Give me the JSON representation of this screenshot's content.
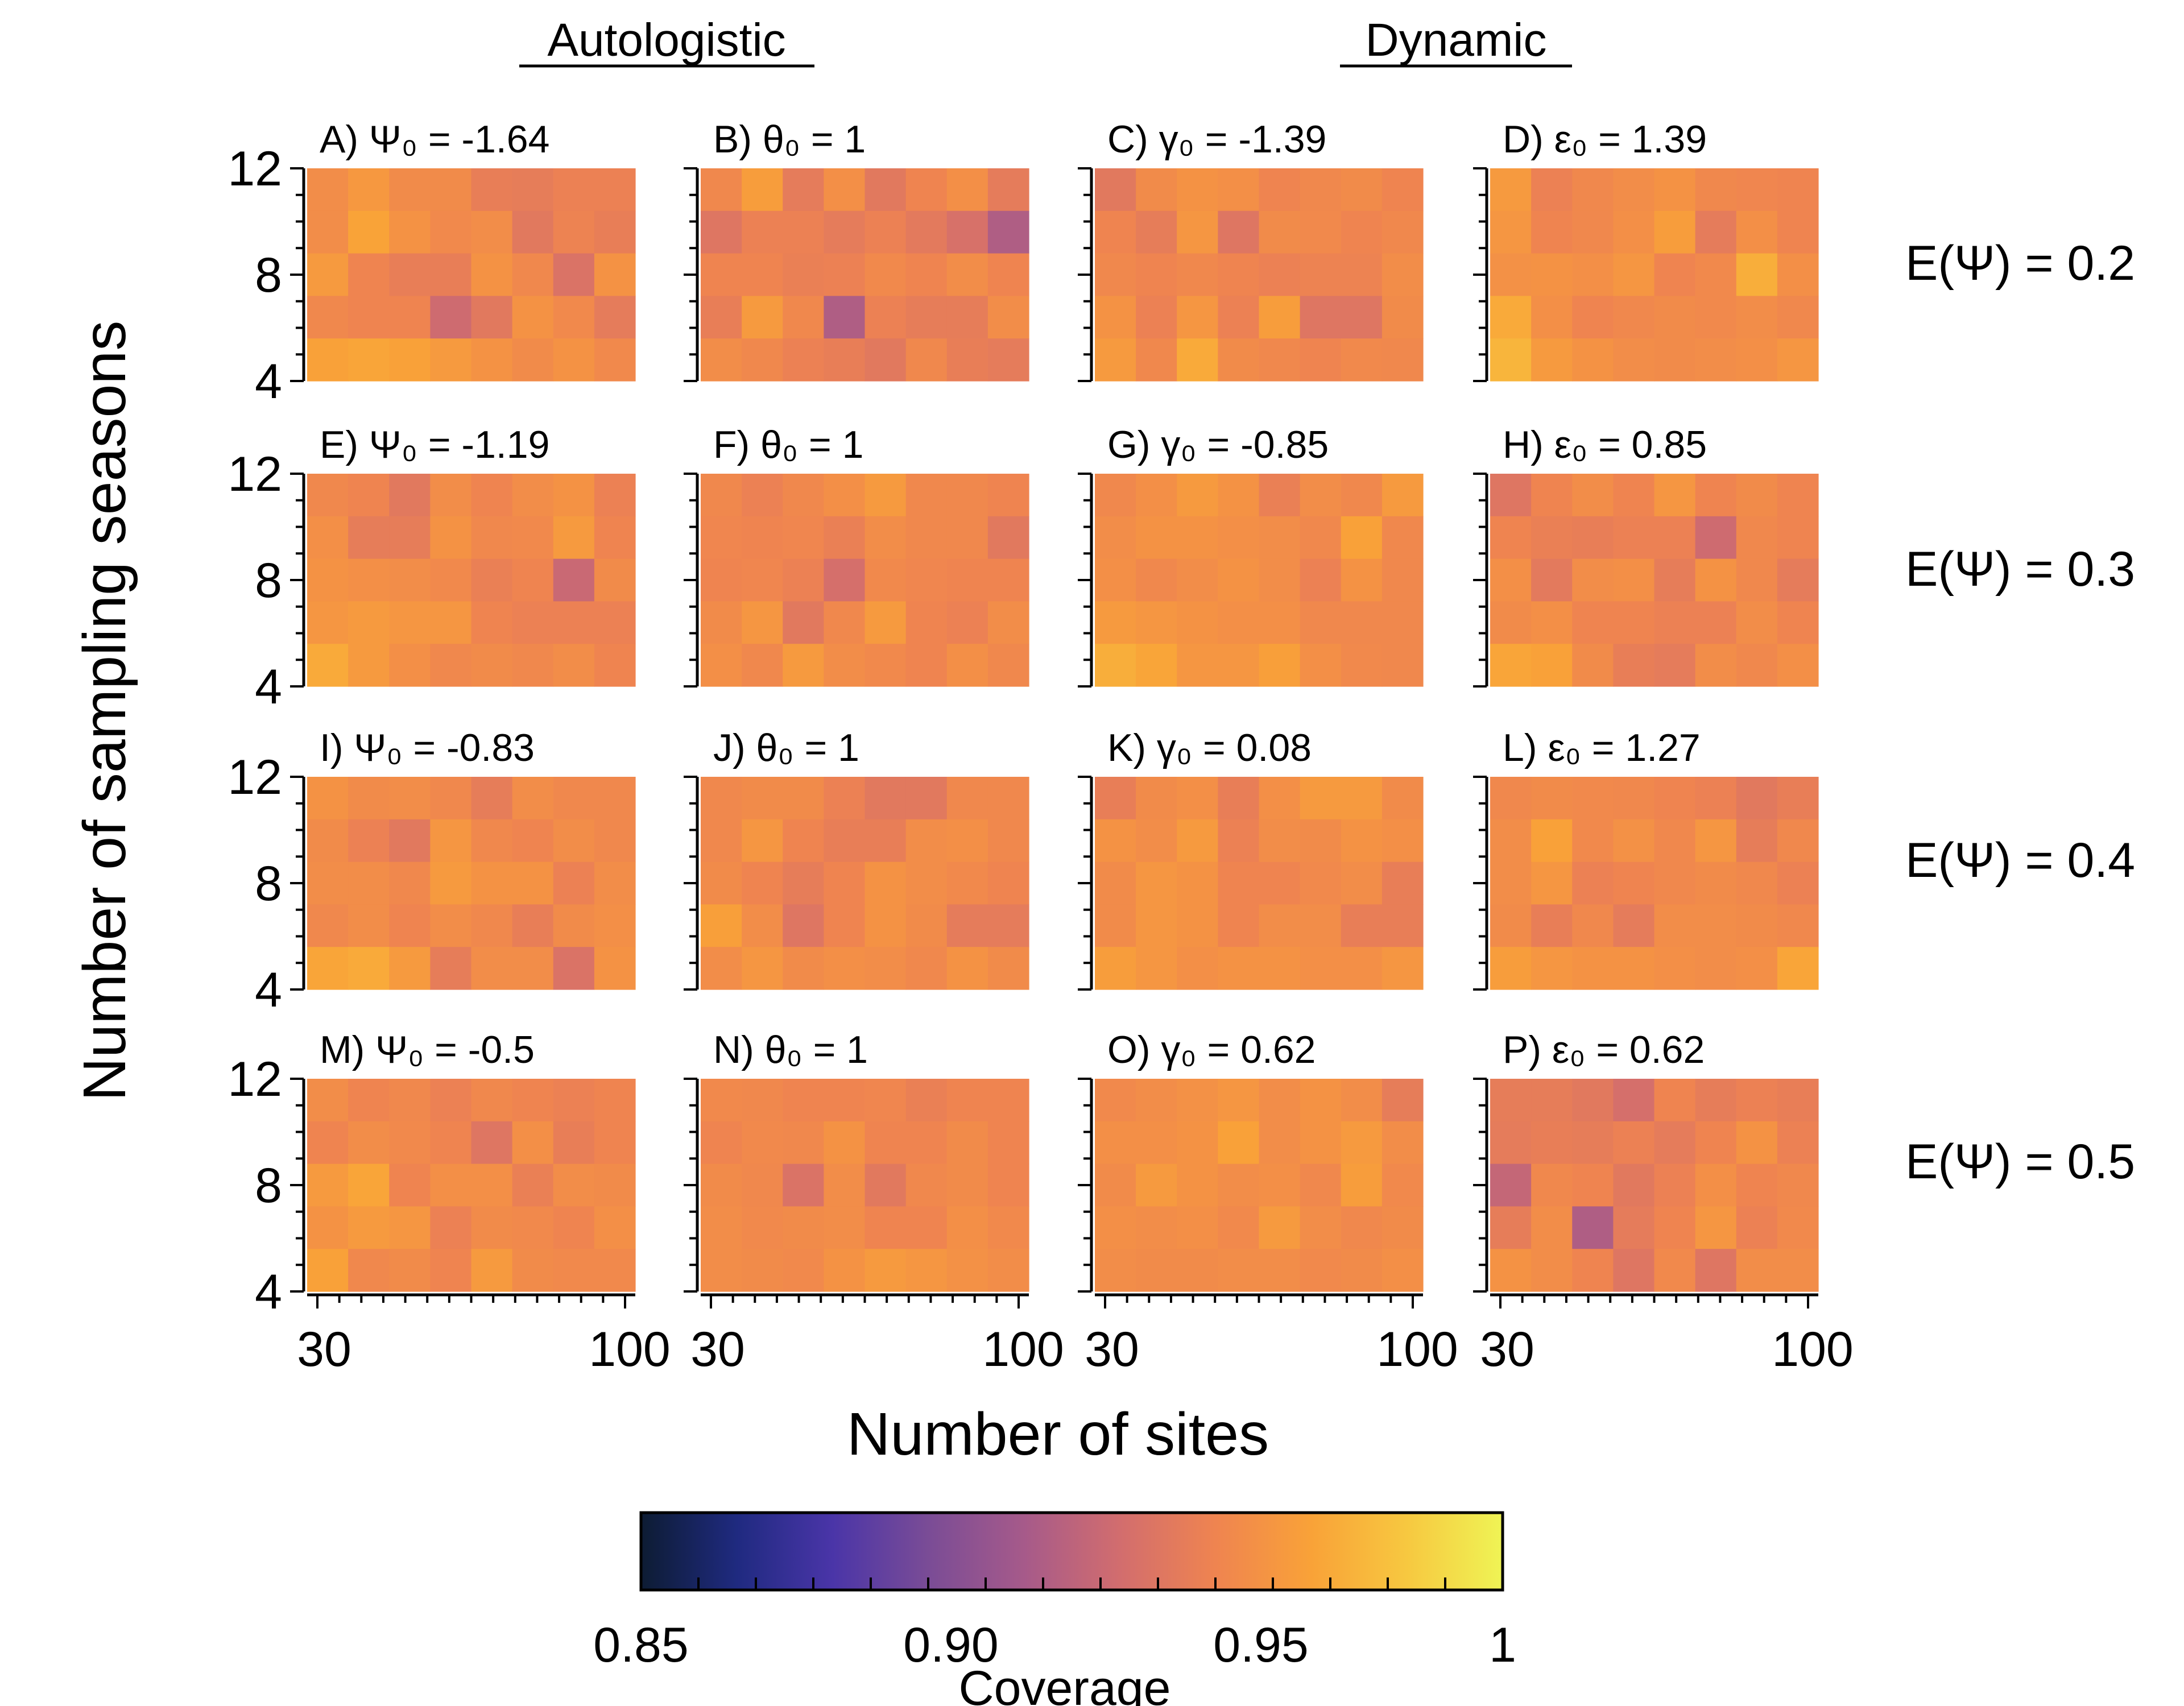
{
  "chart_data": {
    "type": "heatmap",
    "group_titles": [
      "Autologistic",
      "Dynamic"
    ],
    "xlabel": "Number of sites",
    "ylabel": "Number of sampling seasons",
    "x_ticks": [
      "30",
      "100"
    ],
    "y_ticks": [
      "4",
      "8",
      "12"
    ],
    "x_range": [
      30,
      100
    ],
    "y_range": [
      4,
      12
    ],
    "row_labels": [
      "E(Ψ) = 0.2",
      "E(Ψ) = 0.3",
      "E(Ψ) = 0.4",
      "E(Ψ) = 0.5"
    ],
    "colorbar": {
      "title": "Coverage",
      "min": 0.85,
      "max": 1,
      "tick_labels": [
        "0.85",
        "0.90",
        "0.95",
        "1"
      ],
      "colors": [
        "#0d1c33",
        "#1f2a80",
        "#4a35a8",
        "#7a4c96",
        "#a65a8a",
        "#d26d6e",
        "#ef8450",
        "#f9a238",
        "#f7c840",
        "#eff455"
      ]
    },
    "panels": [
      {
        "title": "A) Ψ₀ = -1.64",
        "values": [
          [
            0.955,
            0.961,
            0.954,
            0.954,
            0.946,
            0.945,
            0.948,
            0.948
          ],
          [
            0.955,
            0.967,
            0.958,
            0.953,
            0.955,
            0.942,
            0.949,
            0.946
          ],
          [
            0.962,
            0.95,
            0.946,
            0.946,
            0.958,
            0.952,
            0.938,
            0.958
          ],
          [
            0.952,
            0.95,
            0.95,
            0.932,
            0.942,
            0.958,
            0.953,
            0.944
          ],
          [
            0.966,
            0.968,
            0.966,
            0.962,
            0.958,
            0.954,
            0.958,
            0.953
          ]
        ]
      },
      {
        "title": "B) θ₀ = 1",
        "values": [
          [
            0.952,
            0.964,
            0.944,
            0.956,
            0.942,
            0.95,
            0.956,
            0.944
          ],
          [
            0.94,
            0.948,
            0.948,
            0.944,
            0.948,
            0.943,
            0.936,
            0.92
          ],
          [
            0.95,
            0.95,
            0.947,
            0.948,
            0.953,
            0.95,
            0.955,
            0.95
          ],
          [
            0.946,
            0.962,
            0.952,
            0.92,
            0.948,
            0.945,
            0.945,
            0.955
          ],
          [
            0.955,
            0.952,
            0.948,
            0.946,
            0.942,
            0.952,
            0.946,
            0.944
          ]
        ]
      },
      {
        "title": "C) γ₀ = -1.39",
        "values": [
          [
            0.942,
            0.954,
            0.958,
            0.956,
            0.95,
            0.952,
            0.954,
            0.95
          ],
          [
            0.95,
            0.945,
            0.96,
            0.94,
            0.954,
            0.953,
            0.95,
            0.952
          ],
          [
            0.952,
            0.95,
            0.952,
            0.95,
            0.948,
            0.949,
            0.949,
            0.955
          ],
          [
            0.958,
            0.948,
            0.96,
            0.948,
            0.964,
            0.94,
            0.94,
            0.954
          ],
          [
            0.962,
            0.952,
            0.97,
            0.954,
            0.952,
            0.95,
            0.953,
            0.952
          ]
        ]
      },
      {
        "title": "D) ε₀ = 1.39",
        "values": [
          [
            0.962,
            0.948,
            0.952,
            0.955,
            0.958,
            0.952,
            0.951,
            0.95
          ],
          [
            0.96,
            0.95,
            0.952,
            0.956,
            0.964,
            0.944,
            0.956,
            0.95
          ],
          [
            0.957,
            0.958,
            0.956,
            0.96,
            0.95,
            0.953,
            0.972,
            0.956
          ],
          [
            0.97,
            0.956,
            0.95,
            0.952,
            0.954,
            0.953,
            0.955,
            0.952
          ],
          [
            0.975,
            0.962,
            0.958,
            0.955,
            0.954,
            0.955,
            0.956,
            0.96
          ]
        ]
      },
      {
        "title": "E) Ψ₀ = -1.19",
        "values": [
          [
            0.952,
            0.95,
            0.942,
            0.955,
            0.95,
            0.955,
            0.958,
            0.948
          ],
          [
            0.956,
            0.945,
            0.945,
            0.958,
            0.952,
            0.953,
            0.962,
            0.95
          ],
          [
            0.958,
            0.956,
            0.955,
            0.953,
            0.947,
            0.95,
            0.93,
            0.954
          ],
          [
            0.96,
            0.962,
            0.96,
            0.96,
            0.95,
            0.948,
            0.948,
            0.948
          ],
          [
            0.97,
            0.962,
            0.956,
            0.952,
            0.954,
            0.952,
            0.955,
            0.95
          ]
        ]
      },
      {
        "title": "F) θ₀ = 1",
        "values": [
          [
            0.952,
            0.948,
            0.952,
            0.956,
            0.962,
            0.952,
            0.952,
            0.95
          ],
          [
            0.951,
            0.95,
            0.951,
            0.947,
            0.955,
            0.952,
            0.952,
            0.942
          ],
          [
            0.95,
            0.951,
            0.948,
            0.935,
            0.953,
            0.951,
            0.95,
            0.95
          ],
          [
            0.954,
            0.96,
            0.942,
            0.952,
            0.962,
            0.95,
            0.948,
            0.955
          ],
          [
            0.956,
            0.952,
            0.962,
            0.955,
            0.953,
            0.95,
            0.956,
            0.952
          ]
        ]
      },
      {
        "title": "G) γ₀ = -0.85",
        "values": [
          [
            0.952,
            0.956,
            0.962,
            0.958,
            0.947,
            0.955,
            0.952,
            0.962
          ],
          [
            0.955,
            0.958,
            0.958,
            0.956,
            0.955,
            0.952,
            0.966,
            0.952
          ],
          [
            0.956,
            0.952,
            0.955,
            0.958,
            0.955,
            0.948,
            0.958,
            0.952
          ],
          [
            0.962,
            0.96,
            0.958,
            0.956,
            0.956,
            0.952,
            0.952,
            0.952
          ],
          [
            0.972,
            0.968,
            0.96,
            0.96,
            0.965,
            0.956,
            0.953,
            0.952
          ]
        ]
      },
      {
        "title": "H) ε₀ = 0.85",
        "values": [
          [
            0.94,
            0.95,
            0.955,
            0.95,
            0.96,
            0.95,
            0.954,
            0.95
          ],
          [
            0.95,
            0.947,
            0.946,
            0.948,
            0.948,
            0.932,
            0.952,
            0.95
          ],
          [
            0.956,
            0.943,
            0.955,
            0.956,
            0.945,
            0.958,
            0.952,
            0.944
          ],
          [
            0.954,
            0.956,
            0.95,
            0.95,
            0.948,
            0.948,
            0.955,
            0.95
          ],
          [
            0.968,
            0.966,
            0.954,
            0.946,
            0.944,
            0.955,
            0.952,
            0.956
          ]
        ]
      },
      {
        "title": "I) Ψ₀ = -0.83",
        "values": [
          [
            0.958,
            0.954,
            0.955,
            0.952,
            0.945,
            0.955,
            0.952,
            0.952
          ],
          [
            0.954,
            0.948,
            0.942,
            0.96,
            0.952,
            0.95,
            0.955,
            0.952
          ],
          [
            0.955,
            0.955,
            0.952,
            0.962,
            0.958,
            0.958,
            0.948,
            0.955
          ],
          [
            0.952,
            0.955,
            0.95,
            0.955,
            0.952,
            0.946,
            0.954,
            0.956
          ],
          [
            0.968,
            0.97,
            0.962,
            0.945,
            0.955,
            0.955,
            0.938,
            0.958
          ]
        ]
      },
      {
        "title": "J) θ₀ = 1",
        "values": [
          [
            0.952,
            0.954,
            0.954,
            0.948,
            0.942,
            0.942,
            0.952,
            0.952
          ],
          [
            0.952,
            0.96,
            0.95,
            0.946,
            0.946,
            0.955,
            0.956,
            0.952
          ],
          [
            0.954,
            0.95,
            0.945,
            0.95,
            0.958,
            0.955,
            0.953,
            0.95
          ],
          [
            0.965,
            0.955,
            0.94,
            0.95,
            0.958,
            0.954,
            0.944,
            0.944
          ],
          [
            0.955,
            0.96,
            0.954,
            0.956,
            0.955,
            0.952,
            0.958,
            0.954
          ]
        ]
      },
      {
        "title": "K) γ₀ = 0.08",
        "values": [
          [
            0.946,
            0.954,
            0.956,
            0.946,
            0.956,
            0.962,
            0.962,
            0.954
          ],
          [
            0.958,
            0.955,
            0.962,
            0.948,
            0.955,
            0.954,
            0.958,
            0.956
          ],
          [
            0.954,
            0.96,
            0.958,
            0.95,
            0.95,
            0.953,
            0.955,
            0.946
          ],
          [
            0.954,
            0.96,
            0.958,
            0.95,
            0.955,
            0.955,
            0.946,
            0.946
          ],
          [
            0.964,
            0.96,
            0.956,
            0.958,
            0.958,
            0.956,
            0.956,
            0.96
          ]
        ]
      },
      {
        "title": "L) ε₀ = 1.27",
        "values": [
          [
            0.952,
            0.954,
            0.953,
            0.952,
            0.95,
            0.948,
            0.942,
            0.946
          ],
          [
            0.955,
            0.966,
            0.953,
            0.957,
            0.952,
            0.96,
            0.945,
            0.952
          ],
          [
            0.955,
            0.96,
            0.948,
            0.95,
            0.952,
            0.954,
            0.952,
            0.948
          ],
          [
            0.954,
            0.946,
            0.952,
            0.944,
            0.955,
            0.955,
            0.954,
            0.952
          ],
          [
            0.964,
            0.96,
            0.958,
            0.958,
            0.956,
            0.955,
            0.956,
            0.968
          ]
        ]
      },
      {
        "title": "M) Ψ₀ = -0.5",
        "values": [
          [
            0.955,
            0.95,
            0.952,
            0.948,
            0.952,
            0.95,
            0.948,
            0.95
          ],
          [
            0.95,
            0.955,
            0.953,
            0.95,
            0.94,
            0.956,
            0.946,
            0.95
          ],
          [
            0.962,
            0.968,
            0.95,
            0.956,
            0.956,
            0.947,
            0.955,
            0.954
          ],
          [
            0.958,
            0.962,
            0.96,
            0.948,
            0.954,
            0.953,
            0.95,
            0.956
          ],
          [
            0.966,
            0.952,
            0.954,
            0.95,
            0.962,
            0.954,
            0.953,
            0.953
          ]
        ]
      },
      {
        "title": "N) θ₀ = 1",
        "values": [
          [
            0.953,
            0.952,
            0.95,
            0.95,
            0.951,
            0.947,
            0.95,
            0.95
          ],
          [
            0.95,
            0.953,
            0.952,
            0.958,
            0.95,
            0.95,
            0.954,
            0.95
          ],
          [
            0.954,
            0.952,
            0.938,
            0.955,
            0.942,
            0.952,
            0.954,
            0.95
          ],
          [
            0.955,
            0.953,
            0.954,
            0.955,
            0.95,
            0.95,
            0.956,
            0.953
          ],
          [
            0.955,
            0.954,
            0.953,
            0.958,
            0.962,
            0.96,
            0.957,
            0.955
          ]
        ]
      },
      {
        "title": "O) γ₀ = 0.62",
        "values": [
          [
            0.953,
            0.955,
            0.957,
            0.96,
            0.955,
            0.958,
            0.955,
            0.945
          ],
          [
            0.956,
            0.956,
            0.958,
            0.966,
            0.955,
            0.958,
            0.962,
            0.955
          ],
          [
            0.954,
            0.962,
            0.958,
            0.955,
            0.956,
            0.952,
            0.964,
            0.953
          ],
          [
            0.956,
            0.955,
            0.956,
            0.953,
            0.962,
            0.955,
            0.952,
            0.954
          ],
          [
            0.955,
            0.954,
            0.954,
            0.955,
            0.955,
            0.953,
            0.954,
            0.956
          ]
        ]
      },
      {
        "title": "P) ε₀ = 0.62",
        "values": [
          [
            0.945,
            0.945,
            0.942,
            0.935,
            0.95,
            0.945,
            0.948,
            0.946
          ],
          [
            0.944,
            0.946,
            0.945,
            0.948,
            0.944,
            0.95,
            0.958,
            0.948
          ],
          [
            0.928,
            0.952,
            0.95,
            0.942,
            0.948,
            0.956,
            0.95,
            0.952
          ],
          [
            0.945,
            0.955,
            0.92,
            0.944,
            0.95,
            0.96,
            0.948,
            0.953
          ],
          [
            0.958,
            0.955,
            0.95,
            0.94,
            0.953,
            0.94,
            0.955,
            0.955
          ]
        ]
      }
    ]
  }
}
